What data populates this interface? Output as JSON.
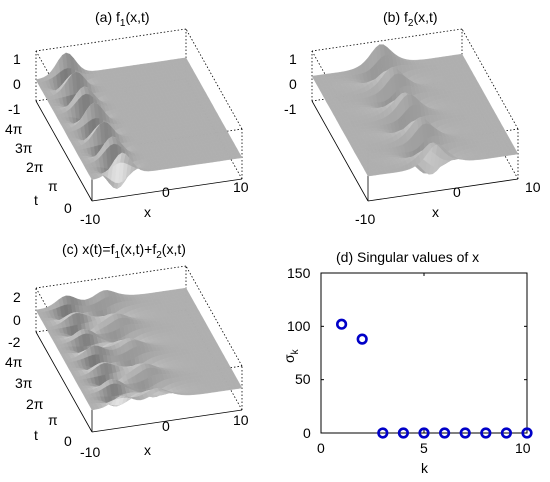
{
  "chart_data": [
    {
      "type": "surface",
      "title": "(a) f",
      "title_sub": "1",
      "title_tail": "(x,t)",
      "xlabel": "x",
      "ylabel": "t",
      "x_ticks": [
        "-10",
        "0",
        "10"
      ],
      "t_ticks": [
        "0",
        "π",
        "2π",
        "3π",
        "4π"
      ],
      "z_ticks": [
        "1",
        "0",
        "-1"
      ],
      "xlim": [
        -10,
        10
      ],
      "tlim": [
        0,
        12.566
      ],
      "zlim": [
        -1,
        1
      ]
    },
    {
      "type": "surface",
      "title": "(b) f",
      "title_sub": "2",
      "title_tail": "(x,t)",
      "xlabel": "x",
      "x_ticks": [
        "-10",
        "0",
        "10"
      ],
      "z_ticks": [
        "1",
        "0",
        "-1"
      ],
      "xlim": [
        -10,
        10
      ],
      "tlim": [
        0,
        12.566
      ],
      "zlim": [
        -1,
        1
      ]
    },
    {
      "type": "surface",
      "title": "(c) x(t)=f",
      "title_sub1": "1",
      "title_mid": "(x,t)+f",
      "title_sub2": "2",
      "title_tail": "(x,t)",
      "xlabel": "x",
      "ylabel": "t",
      "x_ticks": [
        "-10",
        "0",
        "10"
      ],
      "t_ticks": [
        "0",
        "π",
        "2π",
        "3π",
        "4π"
      ],
      "z_ticks": [
        "2",
        "0",
        "-2"
      ],
      "xlim": [
        -10,
        10
      ],
      "tlim": [
        0,
        12.566
      ],
      "zlim": [
        -2,
        2
      ]
    },
    {
      "type": "scatter",
      "title": "(d) Singular values of x",
      "xlabel": "k",
      "ylabel": "σ",
      "ylabel_sub": "k",
      "x_ticks": [
        "0",
        "5",
        "10"
      ],
      "y_ticks": [
        "0",
        "50",
        "100",
        "150"
      ],
      "xlim": [
        0,
        10
      ],
      "ylim": [
        0,
        150
      ],
      "marker": "circle",
      "color": "#0000c8",
      "x": [
        1,
        2,
        3,
        4,
        5,
        6,
        7,
        8,
        9,
        10
      ],
      "y": [
        102,
        88,
        0,
        0,
        0,
        0,
        0,
        0,
        0,
        0
      ]
    }
  ]
}
